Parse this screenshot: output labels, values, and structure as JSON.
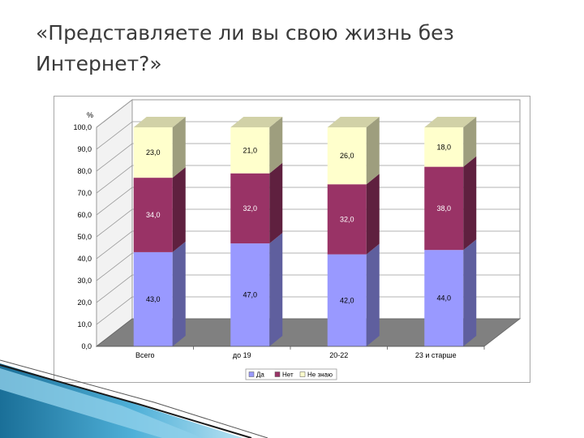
{
  "slide": {
    "title_line1": "«Представляете ли вы свою жизнь без",
    "title_line2": "Интернет?»"
  },
  "chart_data": {
    "type": "bar",
    "stacked": true,
    "three_d": true,
    "categories": [
      "Всего",
      "до 19",
      "20-22",
      "23 и старше"
    ],
    "series": [
      {
        "name": "Да",
        "values": [
          43.0,
          47.0,
          42.0,
          44.0
        ],
        "color": "#9999ff"
      },
      {
        "name": "Нет",
        "values": [
          34.0,
          32.0,
          32.0,
          38.0
        ],
        "color": "#993366"
      },
      {
        "name": "Не знаю",
        "values": [
          23.0,
          21.0,
          26.0,
          18.0
        ],
        "color": "#ffffcc"
      }
    ],
    "value_labels": [
      [
        "43,0",
        "47,0",
        "42,0",
        "44,0"
      ],
      [
        "34,0",
        "32,0",
        "32,0",
        "38,0"
      ],
      [
        "23,0",
        "21,0",
        "26,0",
        "18,0"
      ]
    ],
    "y_ticks": [
      "0,0",
      "10,0",
      "20,0",
      "30,0",
      "40,0",
      "50,0",
      "60,0",
      "70,0",
      "80,0",
      "90,0",
      "100,0"
    ],
    "ylabel": "%",
    "ylim": [
      0,
      100
    ],
    "grid": true,
    "legend_position": "bottom",
    "floor_color": "#808080",
    "wall_color": "#ffffff"
  }
}
